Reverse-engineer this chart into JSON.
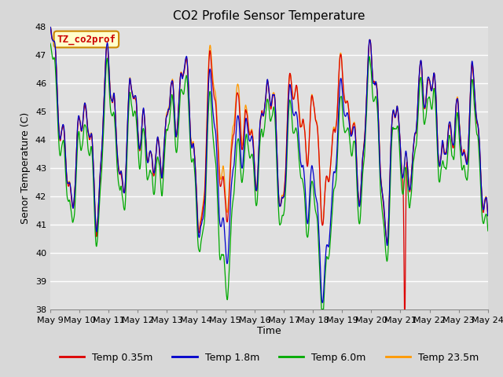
{
  "title": "CO2 Profile Sensor Temperature",
  "xlabel": "Time",
  "ylabel": "Senor Temperature (C)",
  "ylim": [
    38.0,
    48.0
  ],
  "yticks": [
    38.0,
    39.0,
    40.0,
    41.0,
    42.0,
    43.0,
    44.0,
    45.0,
    46.0,
    47.0,
    48.0
  ],
  "xtick_days": [
    9,
    10,
    11,
    12,
    13,
    14,
    15,
    16,
    17,
    18,
    19,
    20,
    21,
    22,
    23,
    24
  ],
  "n_points": 5000,
  "colors": {
    "temp035": "#dd0000",
    "temp18": "#0000cc",
    "temp60": "#00aa00",
    "temp235": "#ff9900"
  },
  "legend_labels": [
    "Temp 0.35m",
    "Temp 1.8m",
    "Temp 6.0m",
    "Temp 23.5m"
  ],
  "annotation_text": "TZ_co2prof",
  "annotation_box_facecolor": "#ffffcc",
  "annotation_box_edgecolor": "#cc8800",
  "annotation_text_color": "#cc0000",
  "fig_facecolor": "#d8d8d8",
  "plot_facecolor": "#e0e0e0",
  "title_fontsize": 11,
  "axis_label_fontsize": 9,
  "tick_fontsize": 8,
  "legend_fontsize": 9
}
